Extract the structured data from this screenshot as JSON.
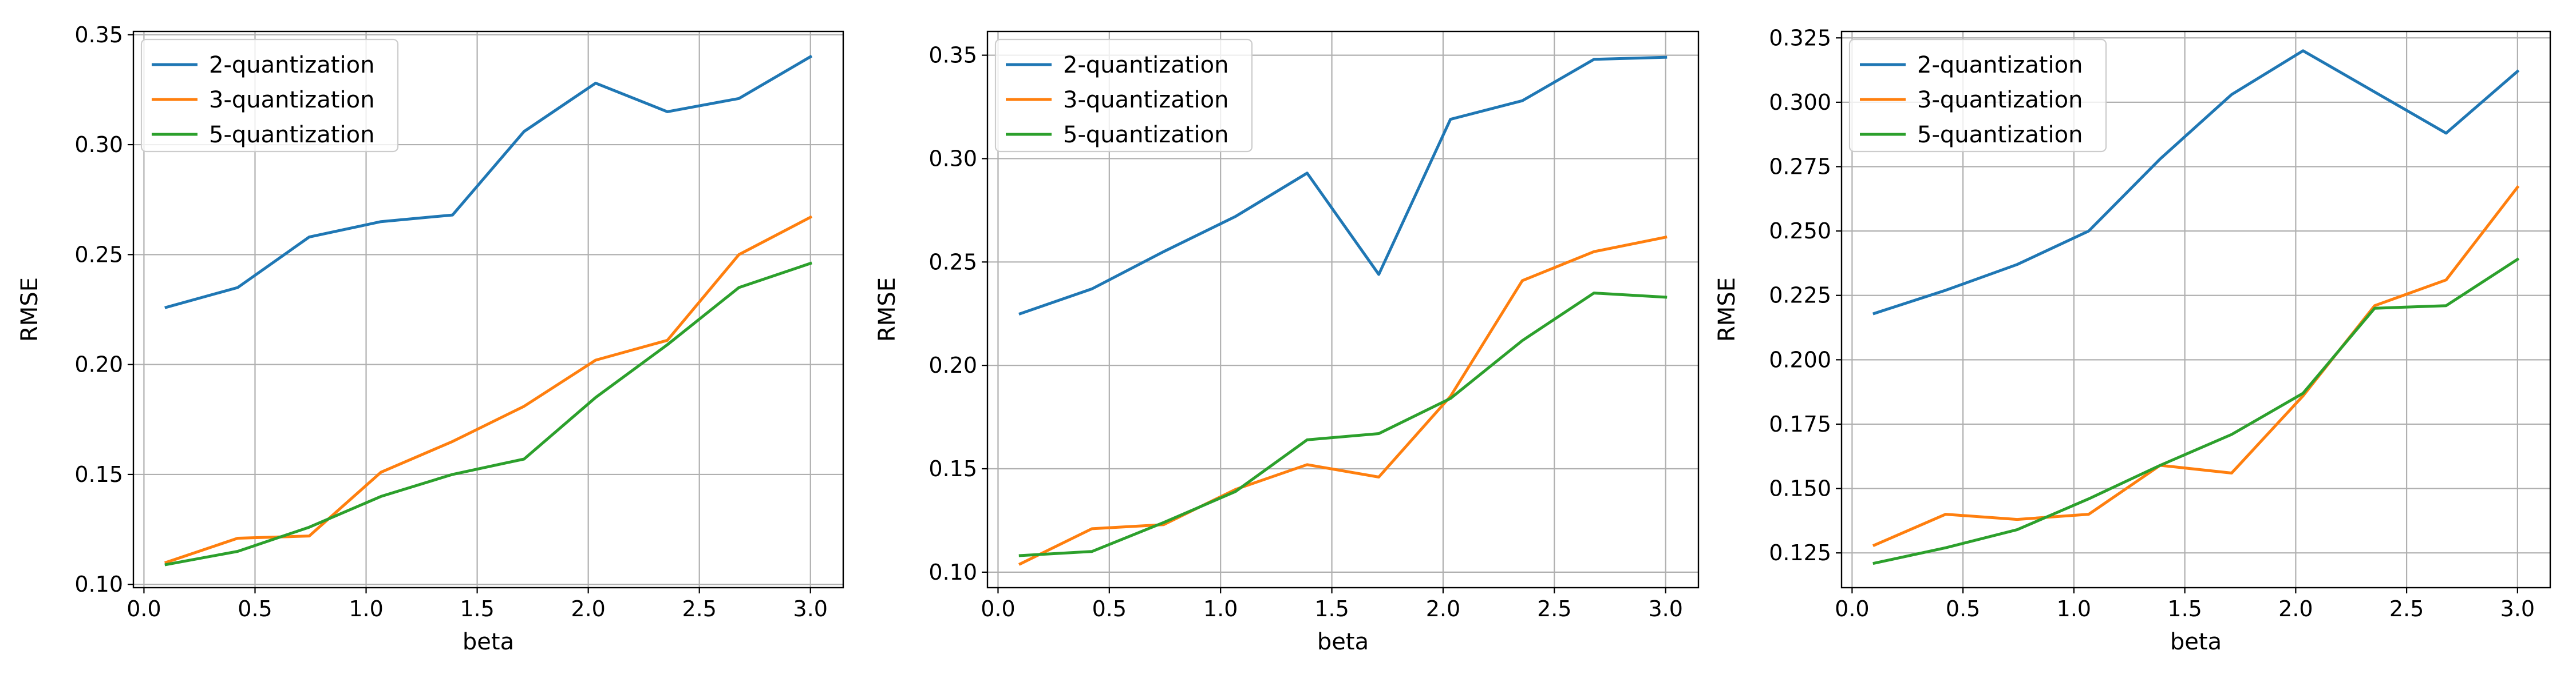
{
  "colors": {
    "s2": "#1f77b4",
    "s3": "#ff7f0e",
    "s5": "#2ca02c",
    "grid": "#b0b0b0",
    "axis": "#000000"
  },
  "chart_data": [
    {
      "type": "line",
      "xlabel": "beta",
      "ylabel": "RMSE",
      "xlim": [
        -0.0475,
        3.1475
      ],
      "ylim": [
        0.0985,
        0.3515
      ],
      "xticks": [
        0.0,
        0.5,
        1.0,
        1.5,
        2.0,
        2.5,
        3.0
      ],
      "xtick_labels": [
        "0.0",
        "0.5",
        "1.0",
        "1.5",
        "2.0",
        "2.5",
        "3.0"
      ],
      "yticks": [
        0.1,
        0.15,
        0.2,
        0.25,
        0.3,
        0.35
      ],
      "ytick_labels": [
        "0.10",
        "0.15",
        "0.20",
        "0.25",
        "0.30",
        "0.35"
      ],
      "grid": true,
      "legend": "upper left",
      "x": [
        0.1,
        0.422,
        0.744,
        1.067,
        1.389,
        1.711,
        2.033,
        2.356,
        2.678,
        3.0
      ],
      "series": [
        {
          "name": "2-quantization",
          "color": "#1f77b4",
          "values": [
            0.226,
            0.235,
            0.258,
            0.265,
            0.268,
            0.306,
            0.328,
            0.315,
            0.321,
            0.34
          ]
        },
        {
          "name": "3-quantization",
          "color": "#ff7f0e",
          "values": [
            0.11,
            0.121,
            0.122,
            0.151,
            0.165,
            0.181,
            0.202,
            0.211,
            0.25,
            0.267
          ]
        },
        {
          "name": "5-quantization",
          "color": "#2ca02c",
          "values": [
            0.109,
            0.115,
            0.126,
            0.14,
            0.15,
            0.157,
            0.185,
            0.209,
            0.235,
            0.246
          ]
        }
      ]
    },
    {
      "type": "line",
      "xlabel": "beta",
      "ylabel": "RMSE",
      "xlim": [
        -0.0475,
        3.1475
      ],
      "ylim": [
        0.0925,
        0.3615
      ],
      "xticks": [
        0.0,
        0.5,
        1.0,
        1.5,
        2.0,
        2.5,
        3.0
      ],
      "xtick_labels": [
        "0.0",
        "0.5",
        "1.0",
        "1.5",
        "2.0",
        "2.5",
        "3.0"
      ],
      "yticks": [
        0.1,
        0.15,
        0.2,
        0.25,
        0.3,
        0.35
      ],
      "ytick_labels": [
        "0.10",
        "0.15",
        "0.20",
        "0.25",
        "0.30",
        "0.35"
      ],
      "grid": true,
      "legend": "upper left",
      "x": [
        0.1,
        0.422,
        0.744,
        1.067,
        1.389,
        1.711,
        2.033,
        2.356,
        2.678,
        3.0
      ],
      "series": [
        {
          "name": "2-quantization",
          "color": "#1f77b4",
          "values": [
            0.225,
            0.237,
            0.255,
            0.272,
            0.293,
            0.244,
            0.319,
            0.328,
            0.348,
            0.349
          ]
        },
        {
          "name": "3-quantization",
          "color": "#ff7f0e",
          "values": [
            0.104,
            0.121,
            0.123,
            0.14,
            0.152,
            0.146,
            0.185,
            0.241,
            0.255,
            0.262
          ]
        },
        {
          "name": "5-quantization",
          "color": "#2ca02c",
          "values": [
            0.108,
            0.11,
            0.124,
            0.139,
            0.164,
            0.167,
            0.184,
            0.212,
            0.235,
            0.233
          ]
        }
      ]
    },
    {
      "type": "line",
      "xlabel": "beta",
      "ylabel": "RMSE",
      "xlim": [
        -0.0475,
        3.1475
      ],
      "ylim": [
        0.1115,
        0.3275
      ],
      "xticks": [
        0.0,
        0.5,
        1.0,
        1.5,
        2.0,
        2.5,
        3.0
      ],
      "xtick_labels": [
        "0.0",
        "0.5",
        "1.0",
        "1.5",
        "2.0",
        "2.5",
        "3.0"
      ],
      "yticks": [
        0.125,
        0.15,
        0.175,
        0.2,
        0.225,
        0.25,
        0.275,
        0.3,
        0.325
      ],
      "ytick_labels": [
        "0.125",
        "0.150",
        "0.175",
        "0.200",
        "0.225",
        "0.250",
        "0.275",
        "0.300",
        "0.325"
      ],
      "grid": true,
      "legend": "upper left",
      "x": [
        0.1,
        0.422,
        0.744,
        1.067,
        1.389,
        1.711,
        2.033,
        2.356,
        2.678,
        3.0
      ],
      "series": [
        {
          "name": "2-quantization",
          "color": "#1f77b4",
          "values": [
            0.218,
            0.227,
            0.237,
            0.25,
            0.278,
            0.303,
            0.32,
            0.304,
            0.288,
            0.312
          ]
        },
        {
          "name": "3-quantization",
          "color": "#ff7f0e",
          "values": [
            0.128,
            0.14,
            0.138,
            0.14,
            0.159,
            0.156,
            0.186,
            0.221,
            0.231,
            0.267
          ]
        },
        {
          "name": "5-quantization",
          "color": "#2ca02c",
          "values": [
            0.121,
            0.127,
            0.134,
            0.146,
            0.159,
            0.171,
            0.187,
            0.22,
            0.221,
            0.239
          ]
        }
      ]
    }
  ]
}
